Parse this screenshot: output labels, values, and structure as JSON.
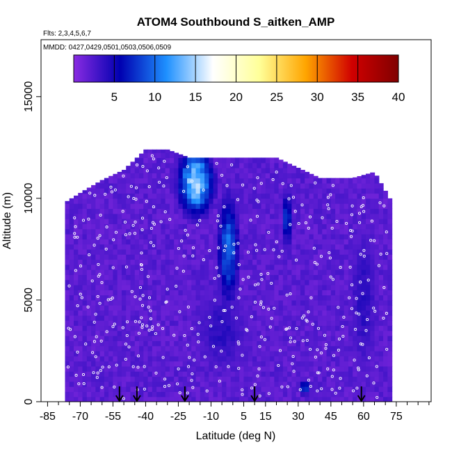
{
  "chart_data": {
    "type": "heatmap",
    "title": "ATOM4 Southbound S_aitken_AMP",
    "flights_label": "Flts: 2,3,4,5,6,7",
    "dates_label": "MMDD: 0427,0429,0501,0503,0506,0509",
    "xlabel": "Latitude (deg N)",
    "ylabel": "Altitude (m)",
    "xlim": [
      -88,
      91
    ],
    "ylim": [
      0,
      17800
    ],
    "x_ticks": [
      -85,
      -70,
      -55,
      -40,
      -25,
      -10,
      5,
      15,
      30,
      45,
      60,
      75
    ],
    "y_ticks": [
      0,
      5000,
      10000,
      15000
    ],
    "colorbar": {
      "min": 0,
      "max": 40,
      "ticks": [
        5,
        10,
        15,
        20,
        25,
        30,
        35,
        40
      ],
      "colors": [
        "#8a2be2",
        "#0000b0",
        "#1e90ff",
        "#ffffff",
        "#ffff99",
        "#ffa500",
        "#d00000",
        "#800000"
      ]
    },
    "coverage": {
      "lat_min": -77,
      "lat_max": 72,
      "alt_max_profile": [
        {
          "lat": -77,
          "alt": 9800
        },
        {
          "lat": -68,
          "alt": 10400
        },
        {
          "lat": -60,
          "alt": 10900
        },
        {
          "lat": -50,
          "alt": 11400
        },
        {
          "lat": -40,
          "alt": 12400
        },
        {
          "lat": -30,
          "alt": 12400
        },
        {
          "lat": -20,
          "alt": 12000
        },
        {
          "lat": -10,
          "alt": 12000
        },
        {
          "lat": 0,
          "alt": 12000
        },
        {
          "lat": 20,
          "alt": 12000
        },
        {
          "lat": 30,
          "alt": 11500
        },
        {
          "lat": 40,
          "alt": 11000
        },
        {
          "lat": 55,
          "alt": 11000
        },
        {
          "lat": 65,
          "alt": 11300
        },
        {
          "lat": 72,
          "alt": 10000
        }
      ],
      "enhanced_regions": [
        {
          "lat_center": -17,
          "alt_center": 10800,
          "lat_width": 16,
          "alt_width": 3200,
          "value": 15
        },
        {
          "lat_center": -2,
          "alt_center": 7500,
          "lat_width": 10,
          "alt_width": 5500,
          "value": 10
        },
        {
          "lat_center": 25,
          "alt_center": 9000,
          "lat_width": 4,
          "alt_width": 3000,
          "value": 9
        },
        {
          "lat_center": 33,
          "alt_center": 700,
          "lat_width": 4,
          "alt_width": 800,
          "value": 10
        },
        {
          "lat_center": -5,
          "alt_center": 3500,
          "lat_width": 30,
          "alt_width": 5000,
          "value": 4
        },
        {
          "lat_center": 60,
          "alt_center": 5000,
          "lat_width": 16,
          "alt_width": 9000,
          "value": 4
        }
      ]
    },
    "arrow_lats": [
      -52,
      -44,
      -22,
      10,
      59
    ]
  }
}
